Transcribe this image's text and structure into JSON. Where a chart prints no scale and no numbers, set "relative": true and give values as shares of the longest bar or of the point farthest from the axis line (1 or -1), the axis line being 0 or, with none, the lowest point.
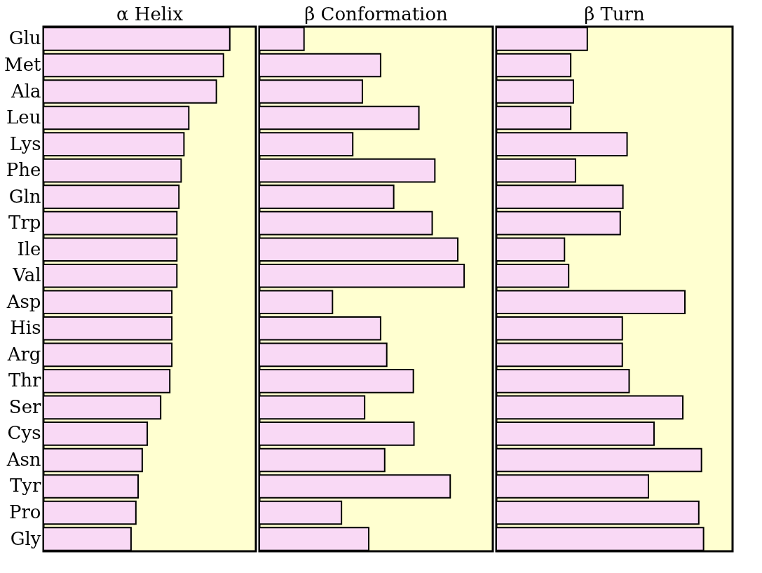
{
  "chart_data": [
    {
      "type": "bar",
      "title": "α Helix",
      "orientation": "horizontal",
      "relative": true,
      "tick_labels": "y",
      "color": "#f9d9f5",
      "categories": [
        "Glu",
        "Met",
        "Ala",
        "Leu",
        "Lys",
        "Phe",
        "Gln",
        "Trp",
        "Ile",
        "Val",
        "Asp",
        "His",
        "Arg",
        "Thr",
        "Ser",
        "Cys",
        "Asn",
        "Tyr",
        "Pro",
        "Gly"
      ],
      "values": [
        1,
        0.966,
        0.928,
        0.78,
        0.754,
        0.739,
        0.727,
        0.716,
        0.716,
        0.716,
        0.689,
        0.689,
        0.689,
        0.678,
        0.629,
        0.557,
        0.53,
        0.508,
        0.496,
        0.47
      ]
    },
    {
      "type": "bar",
      "title": "β Conformation",
      "orientation": "horizontal",
      "relative": true,
      "tick_labels": false,
      "color": "#f9d9f5",
      "categories": [
        "Glu",
        "Met",
        "Ala",
        "Leu",
        "Lys",
        "Phe",
        "Gln",
        "Trp",
        "Ile",
        "Val",
        "Asp",
        "His",
        "Arg",
        "Thr",
        "Ser",
        "Cys",
        "Asn",
        "Tyr",
        "Pro",
        "Gly"
      ],
      "values": [
        0.218,
        0.592,
        0.503,
        0.779,
        0.456,
        0.857,
        0.656,
        0.844,
        0.969,
        1,
        0.357,
        0.592,
        0.622,
        0.752,
        0.514,
        0.755,
        0.612,
        0.932,
        0.401,
        0.534
      ]
    },
    {
      "type": "bar",
      "title": "β Turn",
      "orientation": "horizontal",
      "relative": true,
      "tick_labels": false,
      "color": "#f9d9f5",
      "categories": [
        "Glu",
        "Met",
        "Ala",
        "Leu",
        "Lys",
        "Phe",
        "Gln",
        "Trp",
        "Ile",
        "Val",
        "Asp",
        "His",
        "Arg",
        "Thr",
        "Ser",
        "Cys",
        "Asn",
        "Tyr",
        "Pro",
        "Gly"
      ],
      "values": [
        0.439,
        0.359,
        0.372,
        0.359,
        0.631,
        0.382,
        0.611,
        0.598,
        0.329,
        0.349,
        0.91,
        0.608,
        0.608,
        0.641,
        0.9,
        0.761,
        0.99,
        0.734,
        0.977,
        1
      ]
    }
  ]
}
